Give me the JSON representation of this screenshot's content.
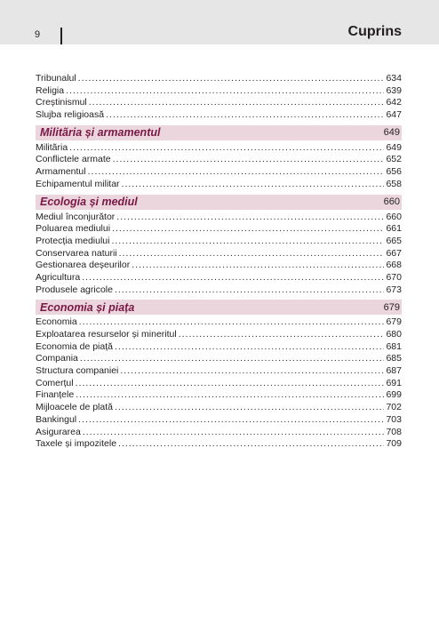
{
  "header": {
    "page_number": "9",
    "title": "Cuprins"
  },
  "toc": {
    "intro_entries": [
      {
        "title": "Tribunalul",
        "page": "634"
      },
      {
        "title": "Religia",
        "page": "639"
      },
      {
        "title": "Creștinismul",
        "page": "642"
      },
      {
        "title": "Slujba religioasă",
        "page": "647"
      }
    ],
    "sections": [
      {
        "title": "Militãria și armamentul",
        "page": "649",
        "entries": [
          {
            "title": "Militãria",
            "page": "649"
          },
          {
            "title": "Conflictele armate",
            "page": "652"
          },
          {
            "title": "Armamentul",
            "page": "656"
          },
          {
            "title": "Echipamentul militar",
            "page": "658"
          }
        ]
      },
      {
        "title": "Ecologia și mediul",
        "page": "660",
        "entries": [
          {
            "title": "Mediul înconjurător",
            "page": "660"
          },
          {
            "title": "Poluarea mediului",
            "page": "661"
          },
          {
            "title": "Protecția mediului",
            "page": "665"
          },
          {
            "title": "Conservarea naturii",
            "page": "667"
          },
          {
            "title": "Gestionarea deșeurilor",
            "page": "668"
          },
          {
            "title": "Agricultura",
            "page": "670"
          },
          {
            "title": "Produsele agricole",
            "page": "673"
          }
        ]
      },
      {
        "title": "Economia și piața",
        "page": "679",
        "entries": [
          {
            "title": "Economia",
            "page": "679"
          },
          {
            "title": "Exploatarea resurselor și mineritul",
            "page": "680"
          },
          {
            "title": "Economia de piață",
            "page": "681"
          },
          {
            "title": "Compania",
            "page": "685"
          },
          {
            "title": "Structura companiei",
            "page": "687"
          },
          {
            "title": "Comerțul",
            "page": "691"
          },
          {
            "title": "Finanțele",
            "page": "699"
          },
          {
            "title": "Mijloacele de plată",
            "page": "702"
          },
          {
            "title": "Bankingul",
            "page": "703"
          },
          {
            "title": "Asigurarea",
            "page": "708"
          },
          {
            "title": "Taxele și impozitele",
            "page": "709"
          }
        ]
      }
    ]
  }
}
